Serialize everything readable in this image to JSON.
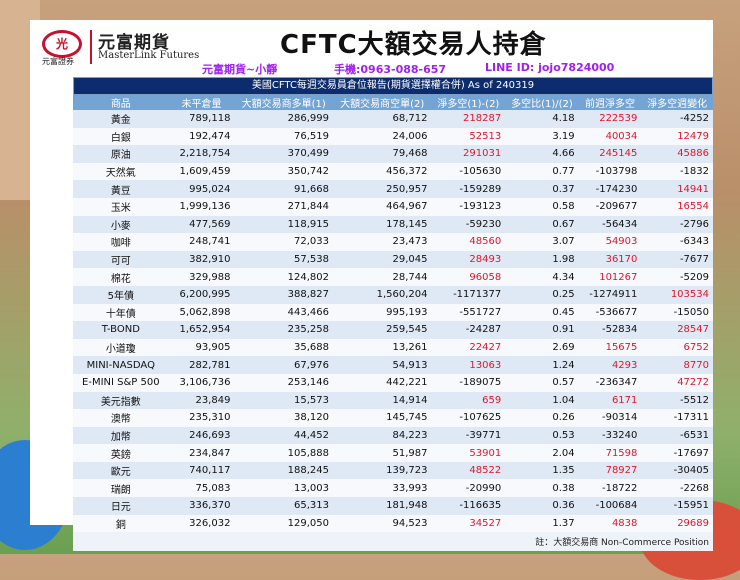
{
  "header": {
    "logo_cn": "元富期貨",
    "logo_en": "MasterLink Futures",
    "logo_sub": "元富證券",
    "logo_mark": "光",
    "title": "CFTC大額交易人持倉",
    "contact_name": "元富期貨~小靜",
    "contact_phone": "手機:0963-088-657",
    "contact_line": "LINE ID: jojo7824000"
  },
  "table": {
    "caption": "美國CFTC每週交易員倉位報告(期貨選擇權合併) As of  240319",
    "columns": [
      "商品",
      "未平倉量",
      "大額交易商多單(1)",
      "大額交易商空單(2)",
      "淨多空(1)-(2)",
      "多空比(1)/(2)",
      "前週淨多空",
      "淨多空週變化"
    ],
    "rows": [
      {
        "name": "黃金",
        "oi": "789,118",
        "long": "286,999",
        "short": "68,712",
        "net": "218287",
        "ratio": "4.18",
        "prev": "222539",
        "chg": "-4252"
      },
      {
        "name": "白銀",
        "oi": "192,474",
        "long": "76,519",
        "short": "24,006",
        "net": "52513",
        "ratio": "3.19",
        "prev": "40034",
        "chg": "12479"
      },
      {
        "name": "原油",
        "oi": "2,218,754",
        "long": "370,499",
        "short": "79,468",
        "net": "291031",
        "ratio": "4.66",
        "prev": "245145",
        "chg": "45886"
      },
      {
        "name": "天然氣",
        "oi": "1,609,459",
        "long": "350,742",
        "short": "456,372",
        "net": "-105630",
        "ratio": "0.77",
        "prev": "-103798",
        "chg": "-1832"
      },
      {
        "name": "黃豆",
        "oi": "995,024",
        "long": "91,668",
        "short": "250,957",
        "net": "-159289",
        "ratio": "0.37",
        "prev": "-174230",
        "chg": "14941"
      },
      {
        "name": "玉米",
        "oi": "1,999,136",
        "long": "271,844",
        "short": "464,967",
        "net": "-193123",
        "ratio": "0.58",
        "prev": "-209677",
        "chg": "16554"
      },
      {
        "name": "小麥",
        "oi": "477,569",
        "long": "118,915",
        "short": "178,145",
        "net": "-59230",
        "ratio": "0.67",
        "prev": "-56434",
        "chg": "-2796"
      },
      {
        "name": "咖啡",
        "oi": "248,741",
        "long": "72,033",
        "short": "23,473",
        "net": "48560",
        "ratio": "3.07",
        "prev": "54903",
        "chg": "-6343"
      },
      {
        "name": "可可",
        "oi": "382,910",
        "long": "57,538",
        "short": "29,045",
        "net": "28493",
        "ratio": "1.98",
        "prev": "36170",
        "chg": "-7677"
      },
      {
        "name": "棉花",
        "oi": "329,988",
        "long": "124,802",
        "short": "28,744",
        "net": "96058",
        "ratio": "4.34",
        "prev": "101267",
        "chg": "-5209"
      },
      {
        "name": "5年債",
        "oi": "6,200,995",
        "long": "388,827",
        "short": "1,560,204",
        "net": "-1171377",
        "ratio": "0.25",
        "prev": "-1274911",
        "chg": "103534"
      },
      {
        "name": "十年債",
        "oi": "5,062,898",
        "long": "443,466",
        "short": "995,193",
        "net": "-551727",
        "ratio": "0.45",
        "prev": "-536677",
        "chg": "-15050"
      },
      {
        "name": "T-BOND",
        "oi": "1,652,954",
        "long": "235,258",
        "short": "259,545",
        "net": "-24287",
        "ratio": "0.91",
        "prev": "-52834",
        "chg": "28547"
      },
      {
        "name": "小道瓊",
        "oi": "93,905",
        "long": "35,688",
        "short": "13,261",
        "net": "22427",
        "ratio": "2.69",
        "prev": "15675",
        "chg": "6752"
      },
      {
        "name": "MINI-NASDAQ",
        "oi": "282,781",
        "long": "67,976",
        "short": "54,913",
        "net": "13063",
        "ratio": "1.24",
        "prev": "4293",
        "chg": "8770"
      },
      {
        "name": "E-MINI S&P 500",
        "oi": "3,106,736",
        "long": "253,146",
        "short": "442,221",
        "net": "-189075",
        "ratio": "0.57",
        "prev": "-236347",
        "chg": "47272"
      },
      {
        "name": "美元指數",
        "oi": "23,849",
        "long": "15,573",
        "short": "14,914",
        "net": "659",
        "ratio": "1.04",
        "prev": "6171",
        "chg": "-5512"
      },
      {
        "name": "澳幣",
        "oi": "235,310",
        "long": "38,120",
        "short": "145,745",
        "net": "-107625",
        "ratio": "0.26",
        "prev": "-90314",
        "chg": "-17311"
      },
      {
        "name": "加幣",
        "oi": "246,693",
        "long": "44,452",
        "short": "84,223",
        "net": "-39771",
        "ratio": "0.53",
        "prev": "-33240",
        "chg": "-6531"
      },
      {
        "name": "英鎊",
        "oi": "234,847",
        "long": "105,888",
        "short": "51,987",
        "net": "53901",
        "ratio": "2.04",
        "prev": "71598",
        "chg": "-17697"
      },
      {
        "name": "歐元",
        "oi": "740,117",
        "long": "188,245",
        "short": "139,723",
        "net": "48522",
        "ratio": "1.35",
        "prev": "78927",
        "chg": "-30405"
      },
      {
        "name": "瑞朗",
        "oi": "75,083",
        "long": "13,003",
        "short": "33,993",
        "net": "-20990",
        "ratio": "0.38",
        "prev": "-18722",
        "chg": "-2268"
      },
      {
        "name": "日元",
        "oi": "336,370",
        "long": "65,313",
        "short": "181,948",
        "net": "-116635",
        "ratio": "0.36",
        "prev": "-100684",
        "chg": "-15951"
      },
      {
        "name": "銅",
        "oi": "326,032",
        "long": "129,050",
        "short": "94,523",
        "net": "34527",
        "ratio": "1.37",
        "prev": "4838",
        "chg": "29689"
      }
    ],
    "note": "註：大額交易商 Non-Commerce Position"
  },
  "colors": {
    "positive": "#e0162b",
    "header_bg": "#74a4d4",
    "caption_bg": "#0c2c6d",
    "brand": "#c8102e"
  }
}
